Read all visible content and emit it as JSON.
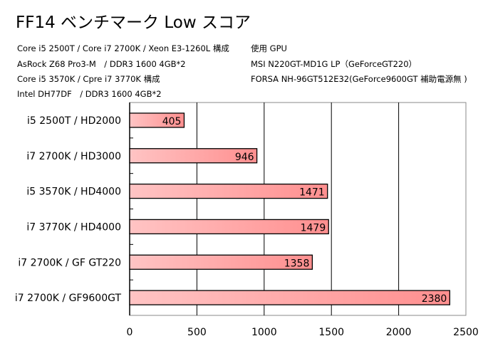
{
  "chart_data": {
    "type": "bar",
    "orientation": "horizontal",
    "title": "FF14 ベンチマーク Low スコア",
    "notes_left": [
      "Core i5 2500T / Core i7 2700K / Xeon E3-1260L 構成",
      "AsRock Z68 Pro3-M　/  DDR3 1600 4GB*2",
      "Core i5 3570K / Cpre i7 3770K 構成",
      "Intel DH77DF　/  DDR3 1600 4GB*2"
    ],
    "notes_right": [
      "使用 GPU",
      "MSI N220GT-MD1G LP（GeForceGT220）",
      "FORSA NH-96GT512E32(GeForce9600GT 補助電源無 )"
    ],
    "categories": [
      "i5 2500T / HD2000",
      "i7 2700K / HD3000",
      "i5 3570K / HD4000",
      "i7 3770K / HD4000",
      "i7 2700K / GF GT220",
      "i7 2700K / GF9600GT"
    ],
    "values": [
      405,
      946,
      1471,
      1479,
      1358,
      2380
    ],
    "xlim": [
      0,
      2500
    ],
    "xticks": [
      0,
      500,
      1000,
      1500,
      2000,
      2500
    ],
    "grid": true,
    "bar_color_start": "#ffc4c4",
    "bar_color_end": "#ff8f8f"
  }
}
